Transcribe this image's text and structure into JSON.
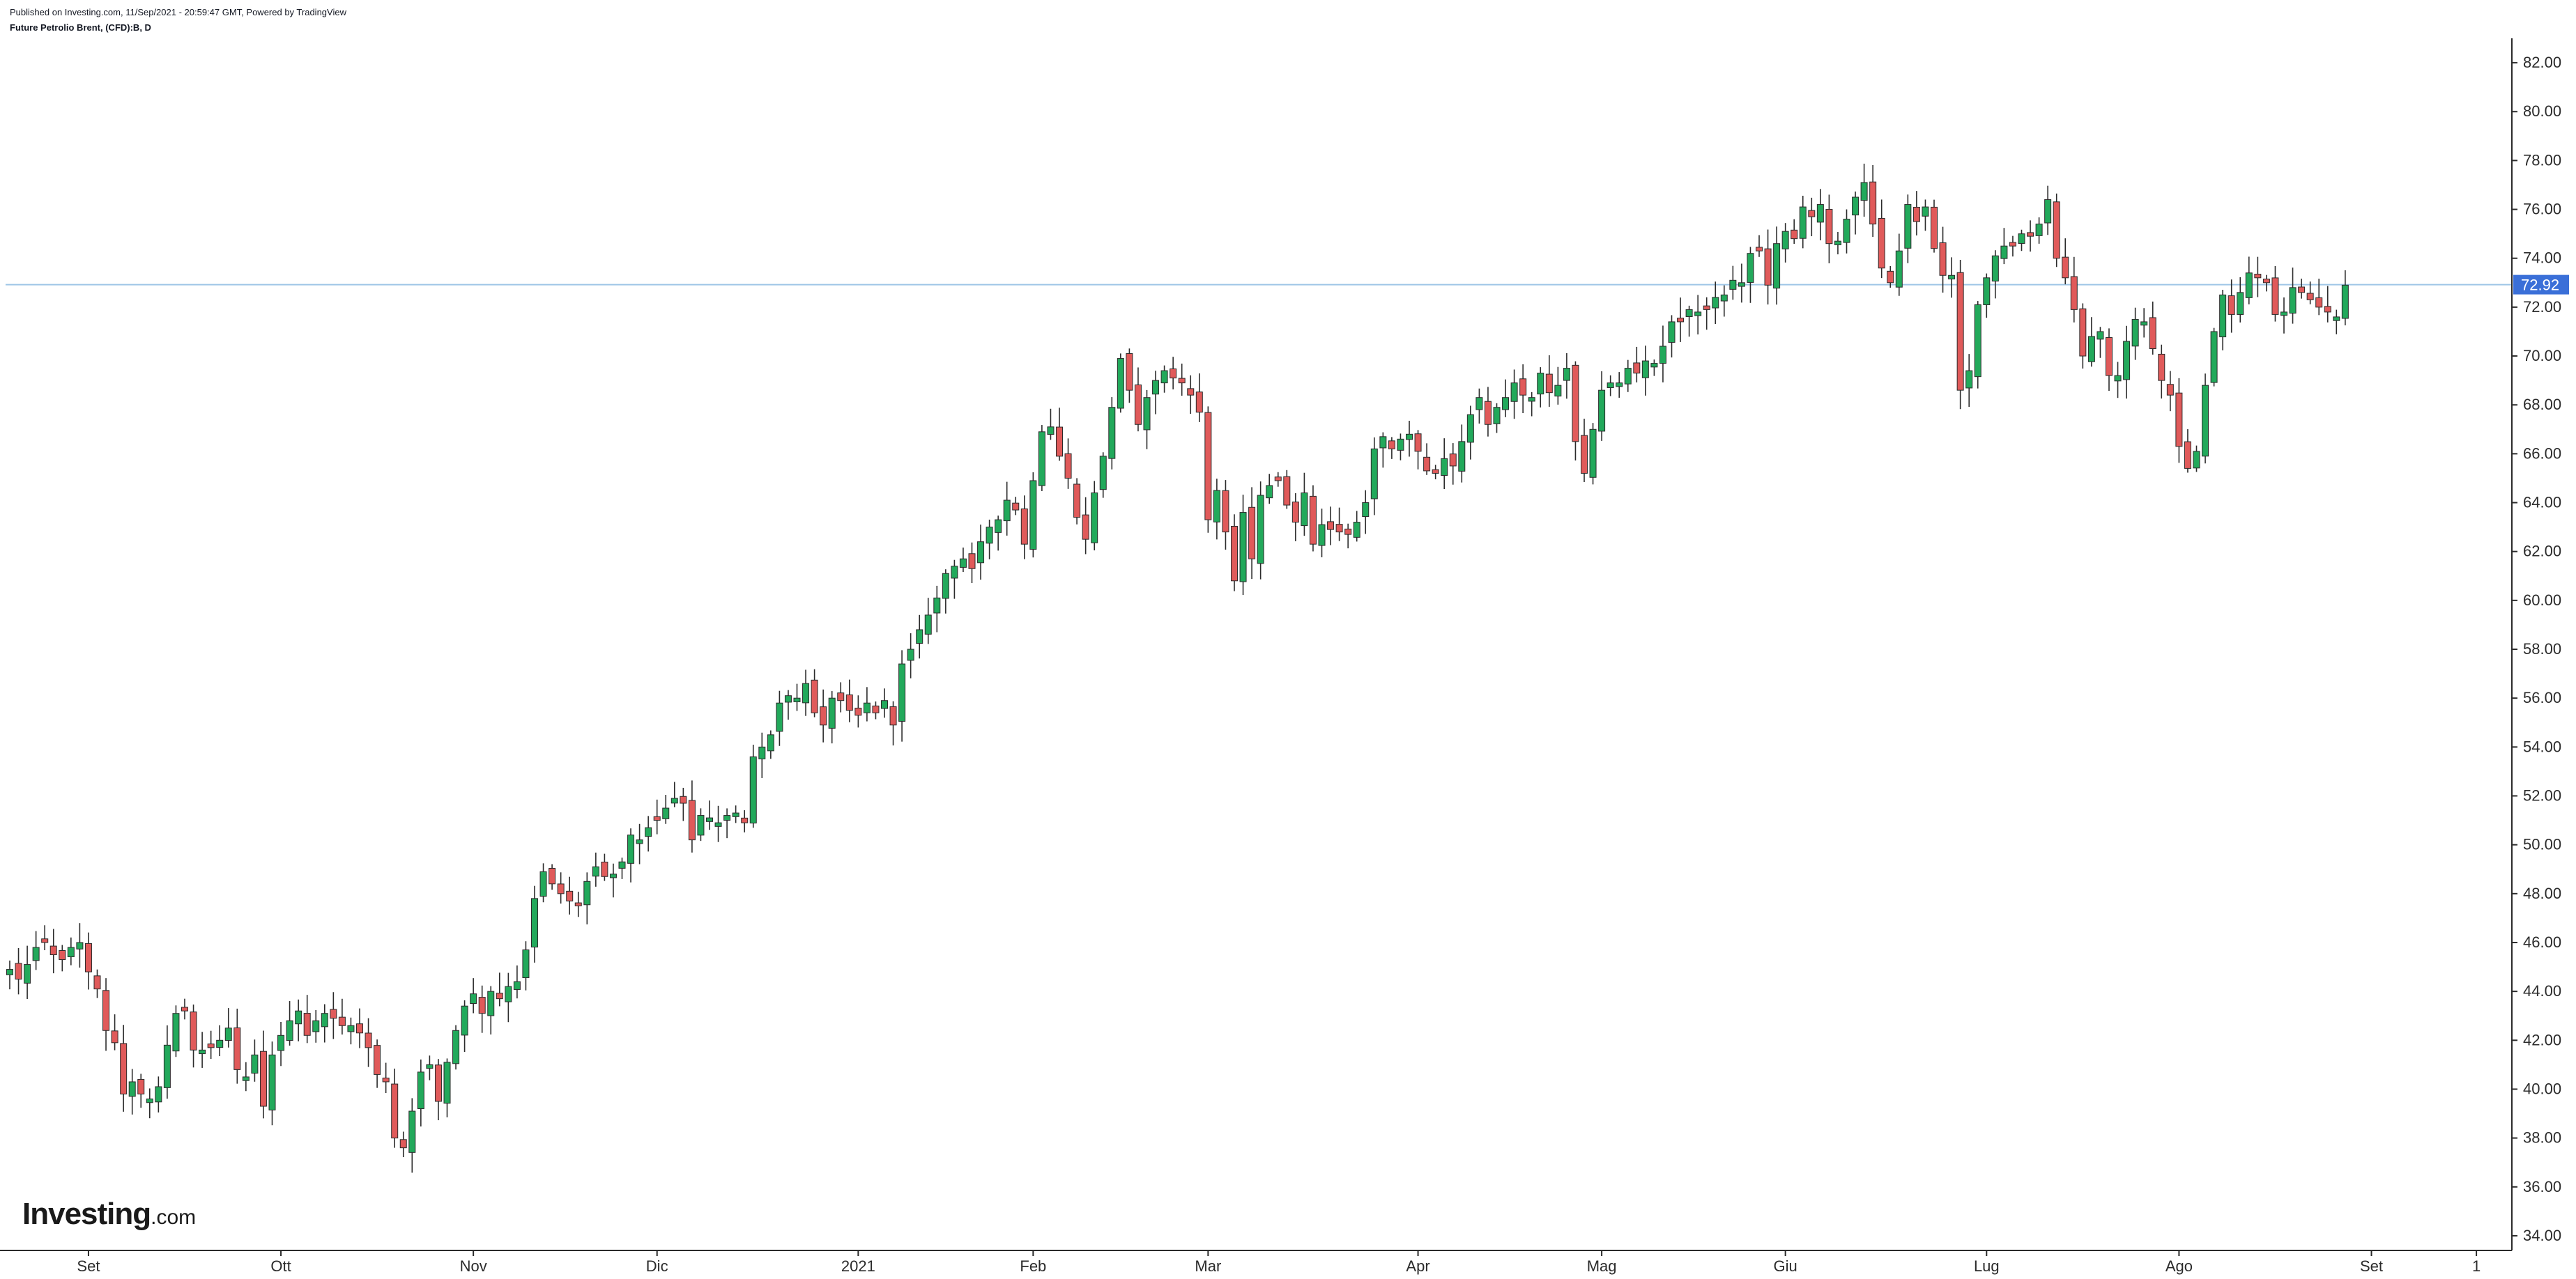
{
  "header": {
    "published": "Published on Investing.com, 11/Sep/2021 - 20:59:47 GMT, Powered by TradingView",
    "instrument": "Future Petrolio Brent, (CFD):B, D"
  },
  "logo": {
    "brand": "Investing",
    "tld": ".com"
  },
  "colors": {
    "up": "#22a95b",
    "down": "#e05a5a",
    "wick": "#2b2b2b",
    "axis": "#2b2b2b",
    "tick_text": "#2b2b2b",
    "price_line": "#9fc6e6",
    "price_badge": "#3a6fd8",
    "price_badge_text": "#ffffff"
  },
  "chart_data": {
    "type": "candlestick",
    "title": "",
    "ylim": [
      33.4,
      83.0
    ],
    "grid": false,
    "current_price": 72.92,
    "current_price_label": "72.92",
    "y_ticks": [
      "34.00",
      "36.00",
      "38.00",
      "40.00",
      "42.00",
      "44.00",
      "46.00",
      "48.00",
      "50.00",
      "52.00",
      "54.00",
      "56.00",
      "58.00",
      "60.00",
      "62.00",
      "64.00",
      "66.00",
      "68.00",
      "70.00",
      "72.00",
      "74.00",
      "76.00",
      "78.00",
      "80.00",
      "82.00"
    ],
    "x_ticks": [
      {
        "label": "Set",
        "index": 9
      },
      {
        "label": "Ott",
        "index": 31
      },
      {
        "label": "Nov",
        "index": 53
      },
      {
        "label": "Dic",
        "index": 74
      },
      {
        "label": "2021",
        "index": 97
      },
      {
        "label": "Feb",
        "index": 117
      },
      {
        "label": "Mar",
        "index": 137
      },
      {
        "label": "Apr",
        "index": 161
      },
      {
        "label": "Mag",
        "index": 182
      },
      {
        "label": "Giu",
        "index": 203
      },
      {
        "label": "Lug",
        "index": 226
      },
      {
        "label": "Ago",
        "index": 248
      },
      {
        "label": "Set",
        "index": 270
      },
      {
        "label": "1",
        "index": 282
      }
    ],
    "closes": [
      44.9,
      44.5,
      45.1,
      45.8,
      46.0,
      45.5,
      45.3,
      45.8,
      46.0,
      44.8,
      44.1,
      42.4,
      41.9,
      39.8,
      40.3,
      39.8,
      39.6,
      40.1,
      41.8,
      43.1,
      43.2,
      41.6,
      41.6,
      41.7,
      42.0,
      42.5,
      40.8,
      40.5,
      41.4,
      39.3,
      41.4,
      42.2,
      42.8,
      43.2,
      42.2,
      42.8,
      43.1,
      42.9,
      42.6,
      42.6,
      42.3,
      41.7,
      40.6,
      40.3,
      38.0,
      37.6,
      39.1,
      40.7,
      41.0,
      39.5,
      41.1,
      42.4,
      43.4,
      43.9,
      43.1,
      44.0,
      43.7,
      44.2,
      44.4,
      45.7,
      47.8,
      48.9,
      48.4,
      48.0,
      47.7,
      47.5,
      48.5,
      49.1,
      48.7,
      48.8,
      49.3,
      50.4,
      50.2,
      50.7,
      51.0,
      51.5,
      51.9,
      51.7,
      50.2,
      51.2,
      51.1,
      50.9,
      51.2,
      51.3,
      50.9,
      53.6,
      54.0,
      54.5,
      55.8,
      56.1,
      56.0,
      56.6,
      55.4,
      54.9,
      56.0,
      55.9,
      55.5,
      55.3,
      55.8,
      55.4,
      55.9,
      54.9,
      57.4,
      58.0,
      58.8,
      59.4,
      60.1,
      61.1,
      61.4,
      61.7,
      61.3,
      62.4,
      63.0,
      63.3,
      64.1,
      63.7,
      62.3,
      64.9,
      66.9,
      67.1,
      65.9,
      65.0,
      63.4,
      62.5,
      64.4,
      65.9,
      67.9,
      69.9,
      68.6,
      67.2,
      68.3,
      69.0,
      69.4,
      69.1,
      68.9,
      68.4,
      67.7,
      63.3,
      64.5,
      62.8,
      60.8,
      63.6,
      61.7,
      64.3,
      64.7,
      64.9,
      63.9,
      63.2,
      64.4,
      62.3,
      63.1,
      62.9,
      62.8,
      62.7,
      63.2,
      64.0,
      66.2,
      66.7,
      66.2,
      66.6,
      66.8,
      66.1,
      65.3,
      65.2,
      65.8,
      65.5,
      66.5,
      67.6,
      68.3,
      67.2,
      67.9,
      68.3,
      68.9,
      68.4,
      68.3,
      69.3,
      68.5,
      68.8,
      69.5,
      66.5,
      65.2,
      67.0,
      68.6,
      68.9,
      68.9,
      69.5,
      69.3,
      69.8,
      69.7,
      70.4,
      71.4,
      71.4,
      71.9,
      71.8,
      71.9,
      72.4,
      72.5,
      73.1,
      73.0,
      74.2,
      74.3,
      72.9,
      74.6,
      75.1,
      74.8,
      76.1,
      75.7,
      76.2,
      74.6,
      74.7,
      75.6,
      76.5,
      77.1,
      75.4,
      73.6,
      73.0,
      74.3,
      76.2,
      75.5,
      76.1,
      74.4,
      73.3,
      73.3,
      68.6,
      69.4,
      72.1,
      73.2,
      74.1,
      74.5,
      74.5,
      75.0,
      74.9,
      75.4,
      76.4,
      74.0,
      73.2,
      71.9,
      70.0,
      70.8,
      71.0,
      69.2,
      69.2,
      70.6,
      71.5,
      71.4,
      70.3,
      69.0,
      68.4,
      66.3,
      65.4,
      66.1,
      68.8,
      71.0,
      72.5,
      71.7,
      72.6,
      73.4,
      73.2,
      73.0,
      71.7,
      71.8,
      72.8,
      72.6,
      72.3,
      72.0,
      71.8,
      71.6,
      72.9
    ],
    "series": [
      {
        "name": "",
        "values": "closes"
      }
    ]
  }
}
